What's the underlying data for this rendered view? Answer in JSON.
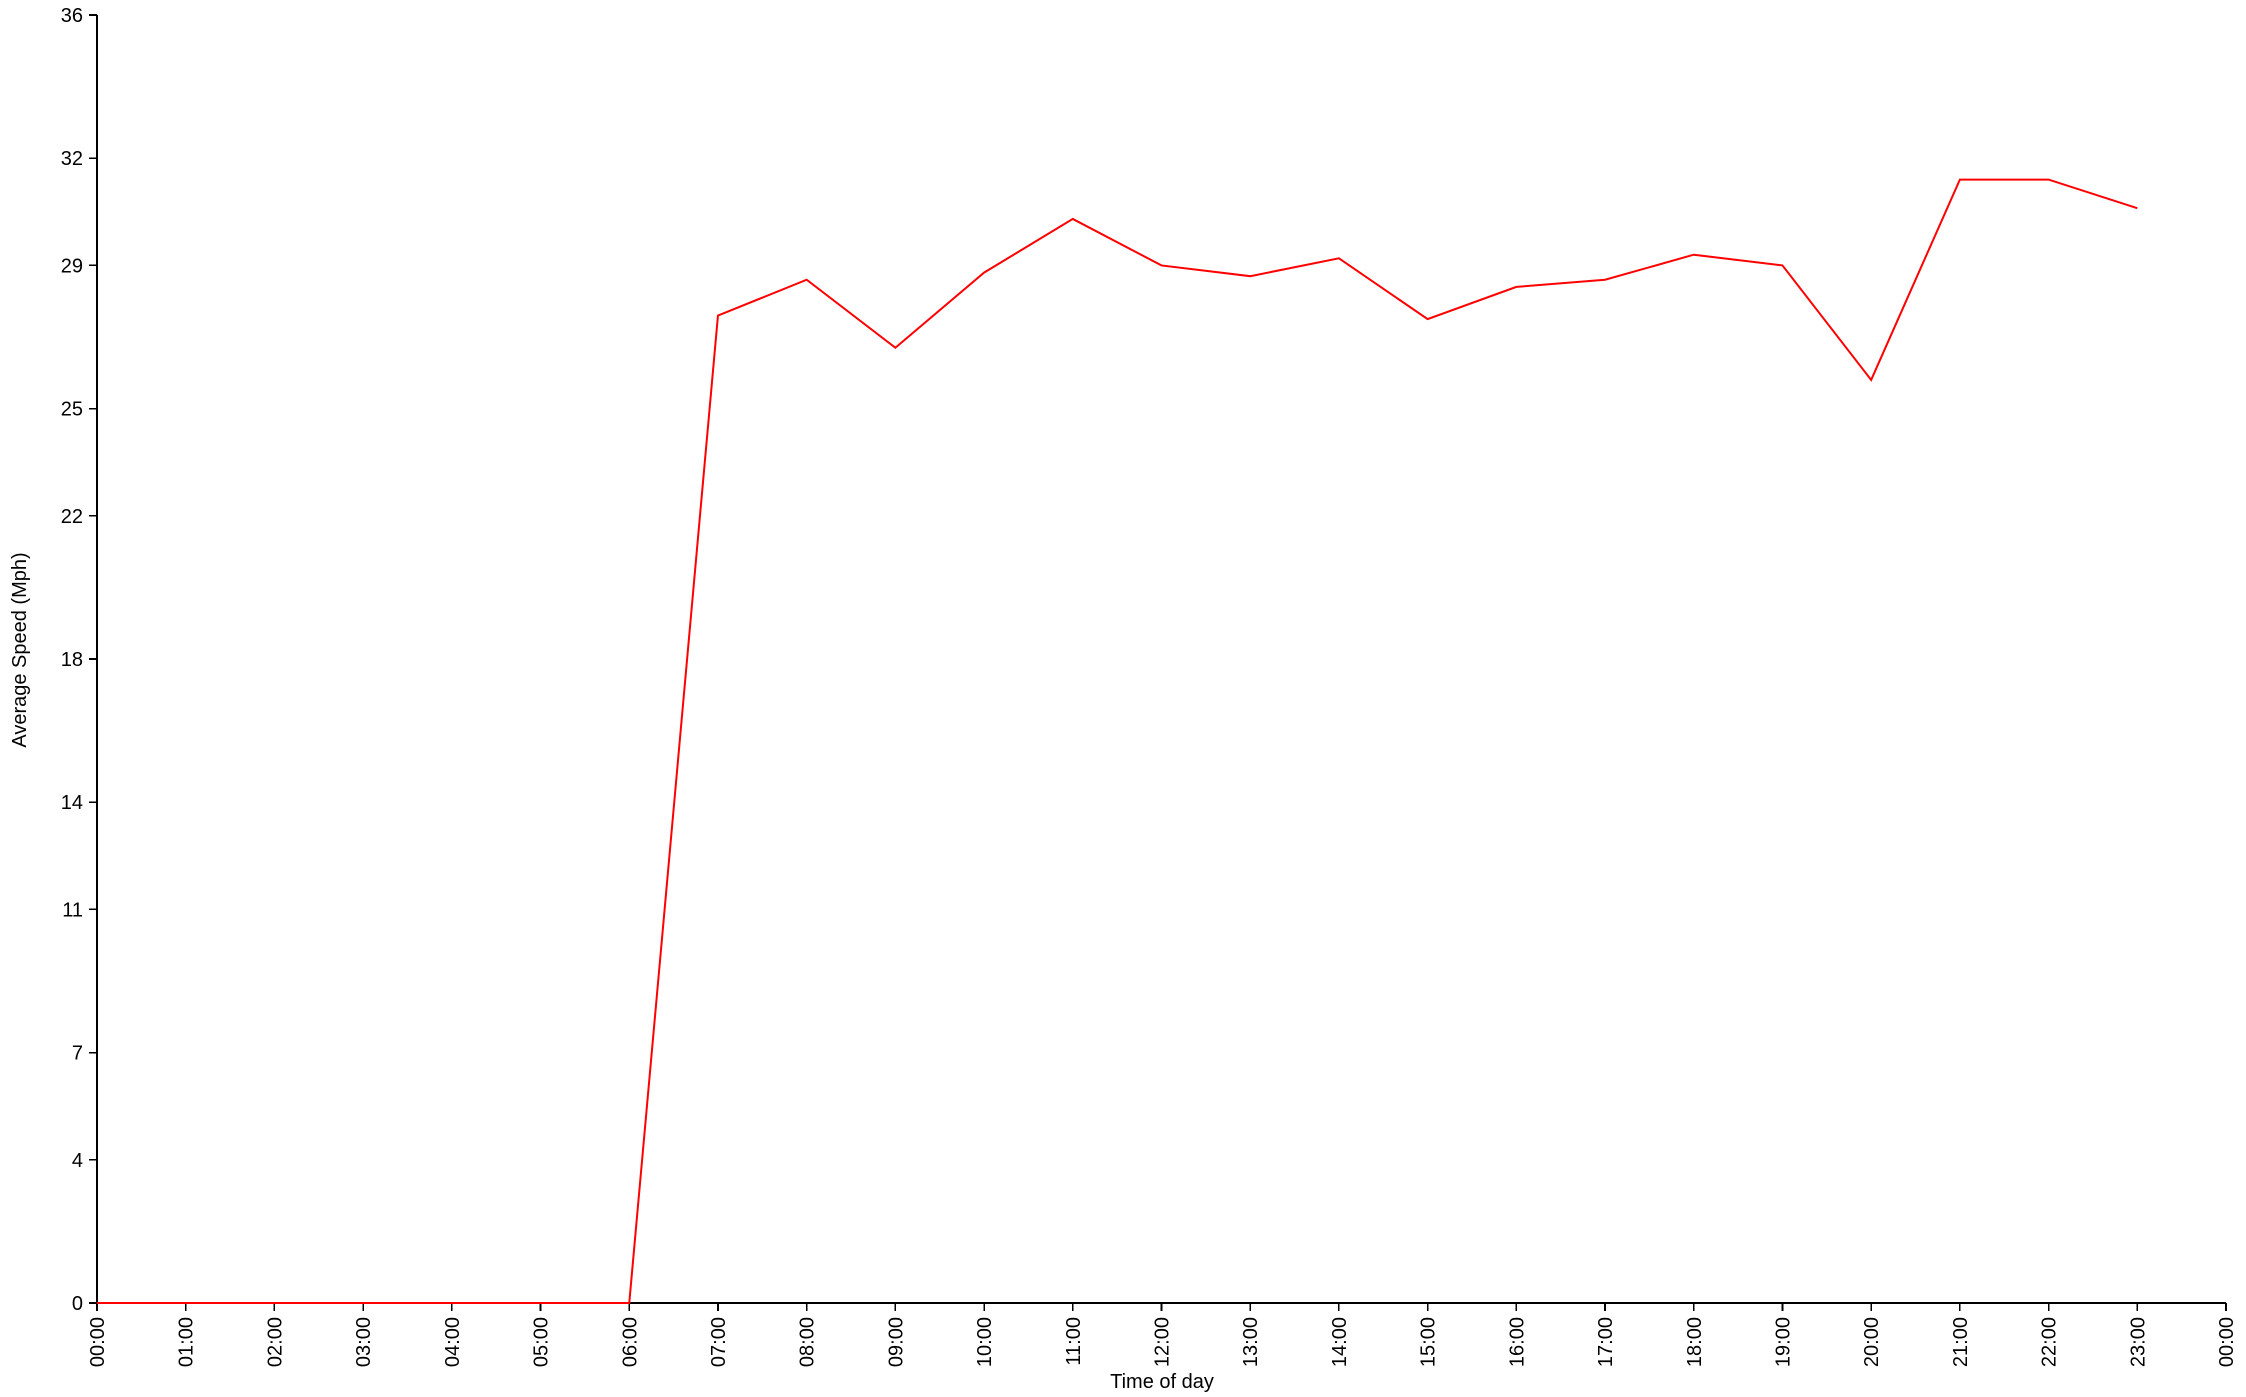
{
  "chart_data": {
    "type": "line",
    "xlabel": "Time of day",
    "ylabel": "Average Speed (Mph)",
    "ylim": [
      0,
      36
    ],
    "y_ticks": [
      0,
      4,
      7,
      11,
      14,
      18,
      22,
      25,
      29,
      32,
      36
    ],
    "x_tick_labels": [
      "00:00",
      "01:00",
      "02:00",
      "03:00",
      "04:00",
      "05:00",
      "06:00",
      "07:00",
      "08:00",
      "09:00",
      "10:00",
      "11:00",
      "12:00",
      "13:00",
      "14:00",
      "15:00",
      "16:00",
      "17:00",
      "18:00",
      "19:00",
      "20:00",
      "21:00",
      "22:00",
      "23:00",
      "00:00"
    ],
    "x": [
      "00:00",
      "01:00",
      "02:00",
      "03:00",
      "04:00",
      "05:00",
      "06:00",
      "07:00",
      "08:00",
      "09:00",
      "10:00",
      "11:00",
      "12:00",
      "13:00",
      "14:00",
      "15:00",
      "16:00",
      "17:00",
      "18:00",
      "19:00",
      "20:00",
      "21:00",
      "22:00",
      "23:00"
    ],
    "series": [
      {
        "color": "#ff0000",
        "values": [
          0,
          0,
          0,
          0,
          0,
          0,
          0,
          27.6,
          28.6,
          26.7,
          28.8,
          30.3,
          29.0,
          28.7,
          29.2,
          27.5,
          28.4,
          28.6,
          29.3,
          29.0,
          25.8,
          31.4,
          31.4,
          30.6
        ]
      }
    ],
    "grid": false,
    "legend": "none"
  }
}
